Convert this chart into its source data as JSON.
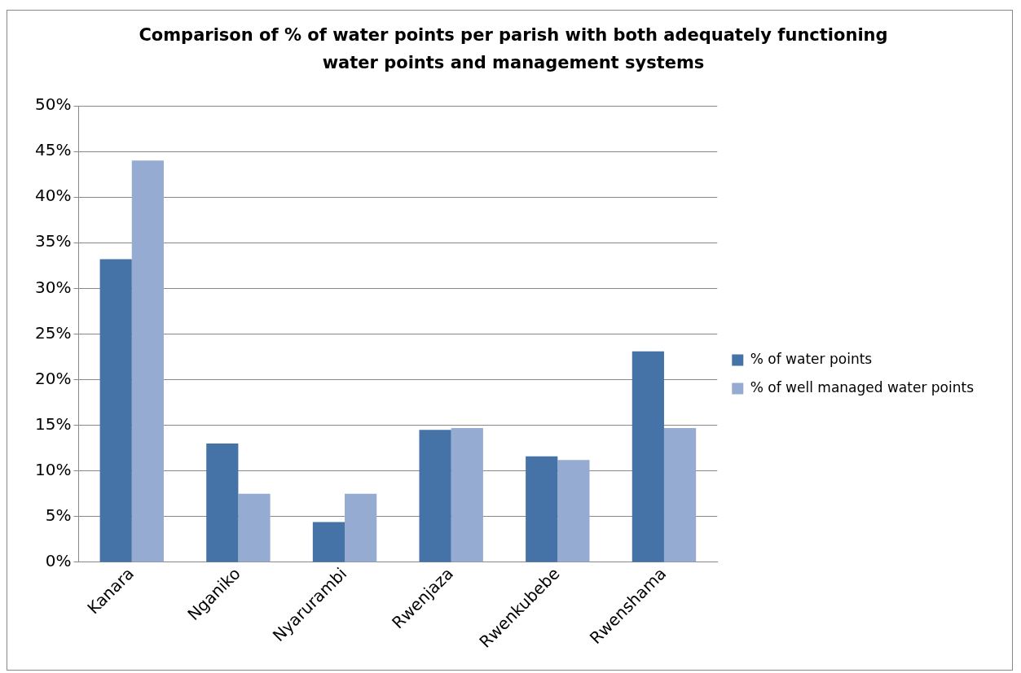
{
  "chart_data": {
    "type": "bar",
    "title": "Comparison of % of water points per parish with both adequately functioning water points and management systems",
    "categories": [
      "Kanara",
      "Nganiko",
      "Nyarurambi",
      "Rwenjaza",
      "Rwenkubebe",
      "Rwenshama"
    ],
    "series": [
      {
        "name": "% of water points",
        "color": "#4572a7",
        "values": [
          33.2,
          13.0,
          4.4,
          14.5,
          11.6,
          23.1
        ]
      },
      {
        "name": "% of well managed water points",
        "color": "#95abd1",
        "values": [
          44,
          7.5,
          7.5,
          14.7,
          11.2,
          14.7
        ]
      }
    ],
    "ylim": [
      0,
      50
    ],
    "yticks": [
      {
        "value": 0,
        "label": "0%"
      },
      {
        "value": 5,
        "label": "5%"
      },
      {
        "value": 10,
        "label": "10%"
      },
      {
        "value": 15,
        "label": "15%"
      },
      {
        "value": 20,
        "label": "20%"
      },
      {
        "value": 25,
        "label": "25%"
      },
      {
        "value": 30,
        "label": "30%"
      },
      {
        "value": 35,
        "label": "35%"
      },
      {
        "value": 40,
        "label": "40%"
      },
      {
        "value": 45,
        "label": "45%"
      },
      {
        "value": 50,
        "label": "50%"
      }
    ],
    "grid": "y",
    "legend": "right"
  }
}
